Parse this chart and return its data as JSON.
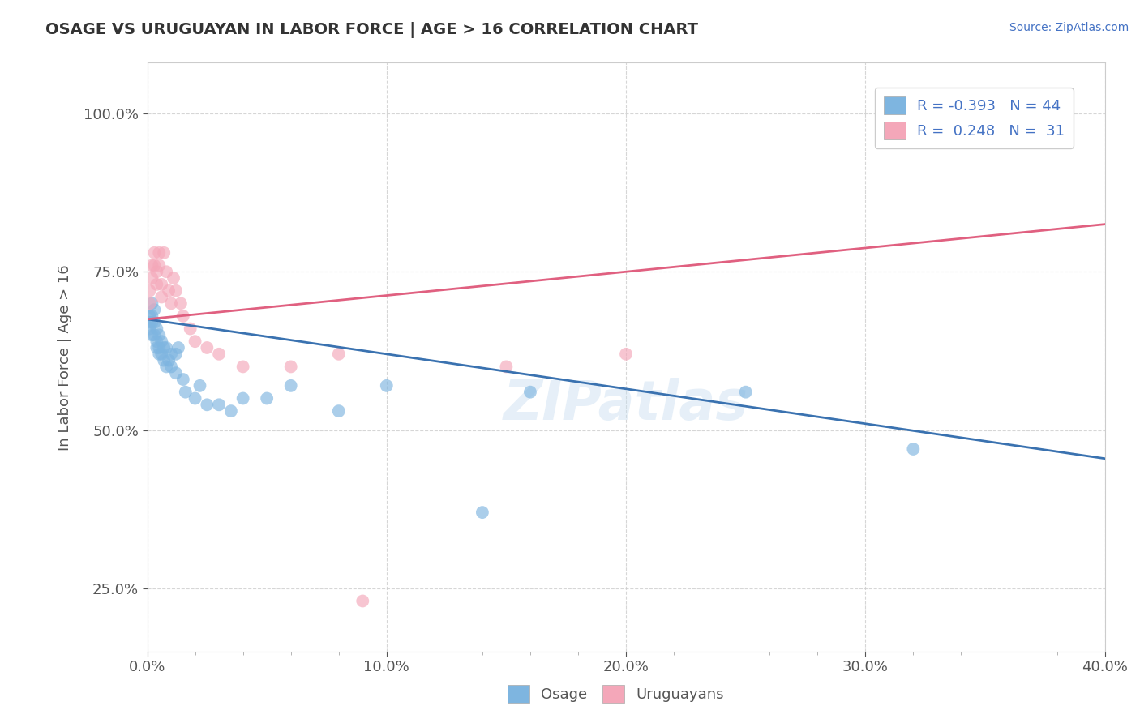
{
  "title": "OSAGE VS URUGUAYAN IN LABOR FORCE | AGE > 16 CORRELATION CHART",
  "source_text": "Source: ZipAtlas.com",
  "ylabel": "In Labor Force | Age > 16",
  "xlim": [
    0.0,
    0.4
  ],
  "ylim": [
    0.15,
    1.08
  ],
  "xtick_labels": [
    "0.0%",
    "10.0%",
    "20.0%",
    "30.0%",
    "40.0%"
  ],
  "xtick_vals": [
    0.0,
    0.1,
    0.2,
    0.3,
    0.4
  ],
  "ytick_labels": [
    "25.0%",
    "50.0%",
    "75.0%",
    "100.0%"
  ],
  "ytick_vals": [
    0.25,
    0.5,
    0.75,
    1.0
  ],
  "osage_color": "#7eb5e0",
  "uruguayan_color": "#f4a7b9",
  "osage_line_color": "#3a72b0",
  "uruguayan_line_color": "#e06080",
  "osage_R": -0.393,
  "osage_N": 44,
  "uruguayan_R": 0.248,
  "uruguayan_N": 31,
  "legend_color": "#4472c4",
  "background_color": "#ffffff",
  "grid_color": "#cccccc",
  "title_color": "#333333",
  "axis_color": "#555555",
  "osage_line_x0": 0.0,
  "osage_line_y0": 0.675,
  "osage_line_x1": 0.4,
  "osage_line_y1": 0.455,
  "uru_line_x0": 0.0,
  "uru_line_y0": 0.675,
  "uru_line_x1": 0.4,
  "uru_line_y1": 0.825,
  "osage_x": [
    0.001,
    0.001,
    0.001,
    0.002,
    0.002,
    0.002,
    0.002,
    0.003,
    0.003,
    0.003,
    0.004,
    0.004,
    0.004,
    0.005,
    0.005,
    0.005,
    0.006,
    0.006,
    0.007,
    0.007,
    0.008,
    0.008,
    0.009,
    0.01,
    0.01,
    0.012,
    0.012,
    0.013,
    0.015,
    0.016,
    0.02,
    0.022,
    0.025,
    0.03,
    0.035,
    0.04,
    0.05,
    0.06,
    0.08,
    0.1,
    0.14,
    0.16,
    0.25,
    0.32
  ],
  "osage_y": [
    0.68,
    0.67,
    0.66,
    0.7,
    0.68,
    0.67,
    0.65,
    0.69,
    0.67,
    0.65,
    0.66,
    0.64,
    0.63,
    0.65,
    0.63,
    0.62,
    0.64,
    0.62,
    0.63,
    0.61,
    0.63,
    0.6,
    0.61,
    0.62,
    0.6,
    0.62,
    0.59,
    0.63,
    0.58,
    0.56,
    0.55,
    0.57,
    0.54,
    0.54,
    0.53,
    0.55,
    0.55,
    0.57,
    0.53,
    0.57,
    0.37,
    0.56,
    0.56,
    0.47
  ],
  "uruguayan_x": [
    0.001,
    0.001,
    0.002,
    0.002,
    0.003,
    0.003,
    0.004,
    0.004,
    0.005,
    0.005,
    0.006,
    0.006,
    0.007,
    0.008,
    0.009,
    0.01,
    0.011,
    0.012,
    0.014,
    0.015,
    0.018,
    0.02,
    0.025,
    0.03,
    0.04,
    0.06,
    0.08,
    0.09,
    0.15,
    0.2,
    0.37
  ],
  "uruguayan_y": [
    0.7,
    0.72,
    0.76,
    0.74,
    0.78,
    0.76,
    0.75,
    0.73,
    0.78,
    0.76,
    0.73,
    0.71,
    0.78,
    0.75,
    0.72,
    0.7,
    0.74,
    0.72,
    0.7,
    0.68,
    0.66,
    0.64,
    0.63,
    0.62,
    0.6,
    0.6,
    0.62,
    0.23,
    0.6,
    0.62,
    1.0
  ]
}
